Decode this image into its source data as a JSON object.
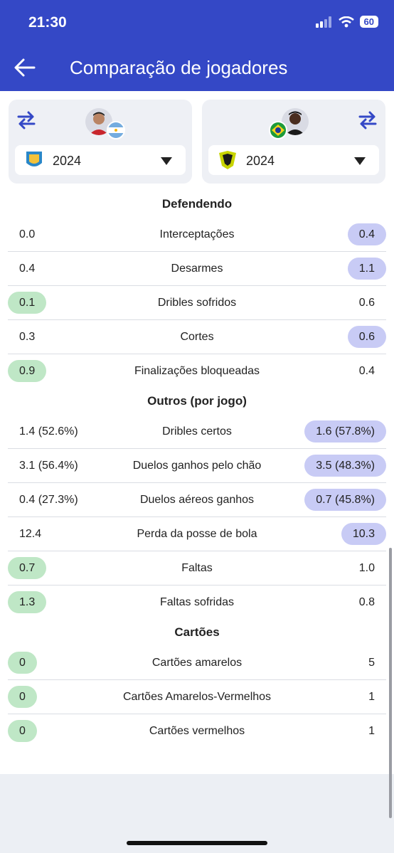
{
  "status": {
    "time": "21:30",
    "battery": "60"
  },
  "header": {
    "title": "Comparação de jogadores"
  },
  "left_player": {
    "season": "2024"
  },
  "right_player": {
    "season": "2024"
  },
  "defending": {
    "title": "Defendendo",
    "rows": [
      {
        "label": "Interceptações",
        "left": "0.0",
        "right": "0.4",
        "winner": "right"
      },
      {
        "label": "Desarmes",
        "left": "0.4",
        "right": "1.1",
        "winner": "right"
      },
      {
        "label": "Dribles sofridos",
        "left": "0.1",
        "right": "0.6",
        "winner": "left"
      },
      {
        "label": "Cortes",
        "left": "0.3",
        "right": "0.6",
        "winner": "right"
      },
      {
        "label": "Finalizações bloqueadas",
        "left": "0.9",
        "right": "0.4",
        "winner": "left"
      }
    ]
  },
  "others": {
    "title": "Outros (por jogo)",
    "rows": [
      {
        "label": "Dribles certos",
        "left": "1.4 (52.6%)",
        "right": "1.6 (57.8%)",
        "winner": "right"
      },
      {
        "label": "Duelos ganhos pelo chão",
        "left": "3.1 (56.4%)",
        "right": "3.5 (48.3%)",
        "winner": "right"
      },
      {
        "label": "Duelos aéreos ganhos",
        "left": "0.4 (27.3%)",
        "right": "0.7 (45.8%)",
        "winner": "right"
      },
      {
        "label": "Perda da posse de bola",
        "left": "12.4",
        "right": "10.3",
        "winner": "right"
      },
      {
        "label": "Faltas",
        "left": "0.7",
        "right": "1.0",
        "winner": "left"
      },
      {
        "label": "Faltas sofridas",
        "left": "1.3",
        "right": "0.8",
        "winner": "left"
      }
    ]
  },
  "cards": {
    "title": "Cartões",
    "rows": [
      {
        "label": "Cartões amarelos",
        "left": "0",
        "right": "5",
        "winner": "left"
      },
      {
        "label": "Cartões Amarelos-Vermelhos",
        "left": "0",
        "right": "1",
        "winner": "left"
      },
      {
        "label": "Cartões vermelhos",
        "left": "0",
        "right": "1",
        "winner": "left"
      }
    ]
  },
  "icons": [
    "back-arrow-icon",
    "swap-icon",
    "wifi-icon",
    "signal-icon",
    "dropdown-triangle-icon"
  ],
  "colors": {
    "header": "#3448c6",
    "left_win": "#bfe7c6",
    "right_win": "#c8cbf5"
  }
}
